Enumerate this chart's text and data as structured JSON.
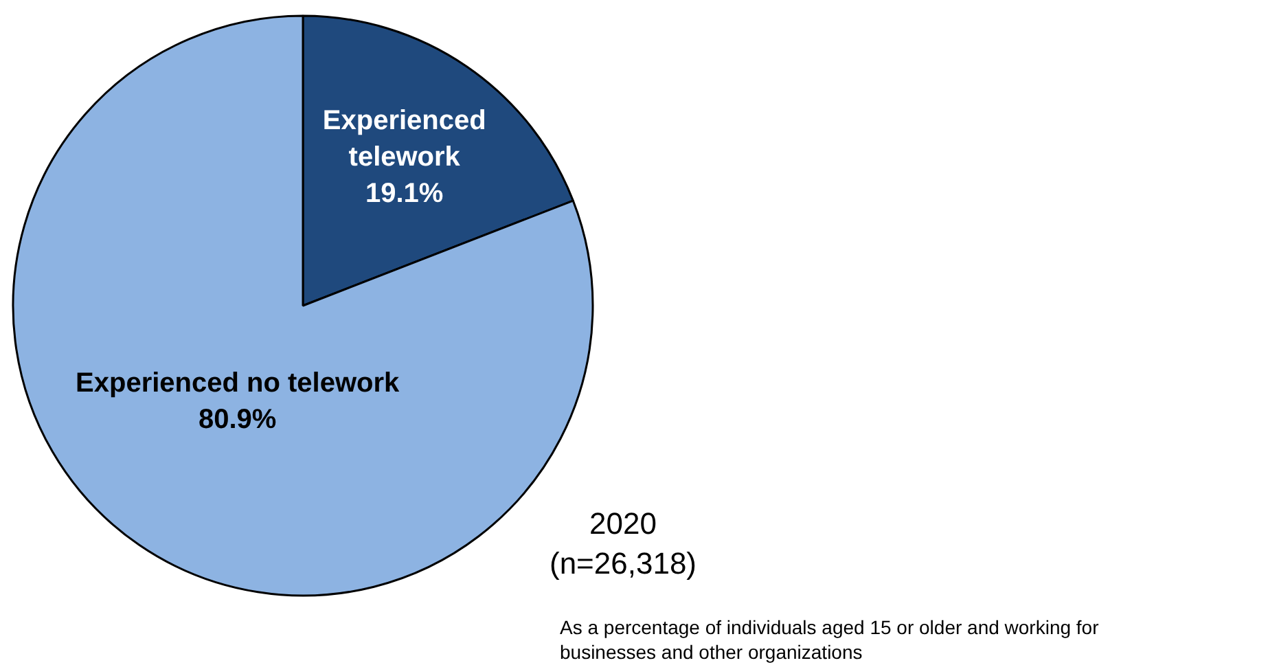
{
  "chart_data": {
    "type": "pie",
    "categories": [
      "Experienced telework",
      "Experienced no telework"
    ],
    "values": [
      19.1,
      80.9
    ],
    "value_labels": [
      "19.1%",
      "80.9%"
    ],
    "colors": [
      "#1f497d",
      "#8db3e2"
    ],
    "annotations": [
      "2020\n(n=26,318)",
      "As a percentage of individuals aged 15 or older and working for\nbusinesses and other organizations"
    ]
  }
}
